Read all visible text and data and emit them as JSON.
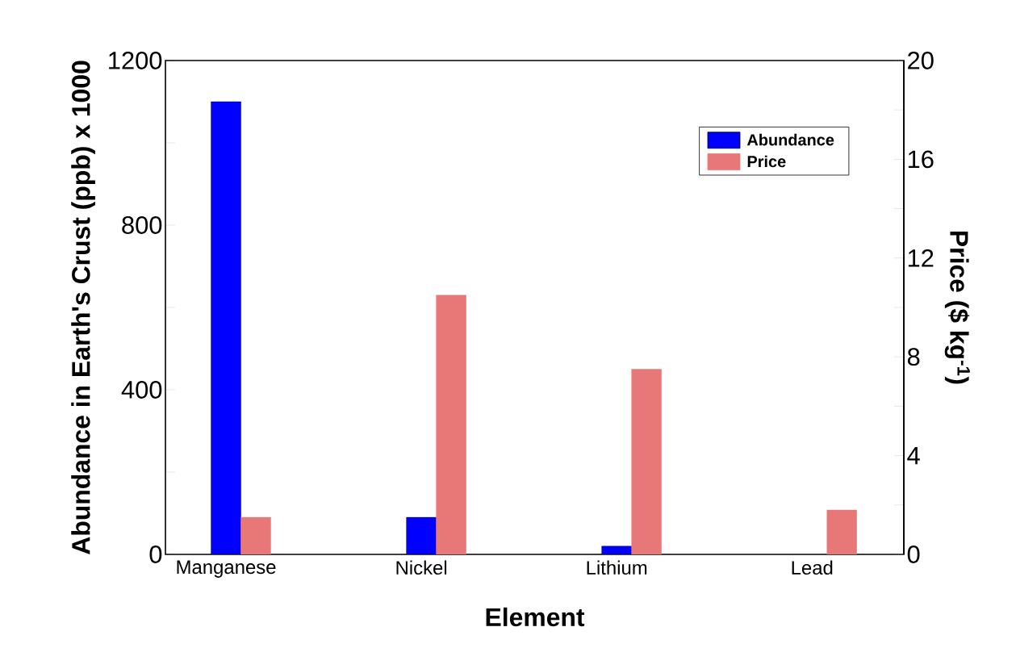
{
  "chart_data": {
    "type": "bar",
    "xlabel": "Element",
    "ylabel": "Abundance in Earth's Crust (ppb) x 1000",
    "y2label": "Price ($ kg$^{-1}$)",
    "categories": [
      "Manganese",
      "Nickel",
      "Lithium",
      "Lead"
    ],
    "series": [
      {
        "name": "Abundance",
        "color": "#0000ff",
        "values": [
          1100,
          90,
          20,
          null
        ]
      },
      {
        "name": "Price",
        "color": "#e87878",
        "axis": "y2",
        "values": [
          1.5,
          10.5,
          7.5,
          1.8
        ]
      }
    ],
    "ylim": [
      0,
      1200
    ],
    "yticks": [
      0,
      {
        "value": 200,
        "label": null
      },
      400,
      {
        "value": 600,
        "label": null
      },
      800,
      {
        "value": 1000,
        "label": null
      },
      1200
    ],
    "y2lim": [
      0,
      20
    ],
    "y2ticks": [
      0,
      {
        "value": 2,
        "label": null
      },
      4,
      {
        "value": 6,
        "label": null
      },
      8,
      {
        "value": 10,
        "label": null
      },
      12,
      {
        "value": 14,
        "label": null
      },
      16,
      {
        "value": 18,
        "label": null
      },
      20
    ],
    "legend": "top right"
  }
}
